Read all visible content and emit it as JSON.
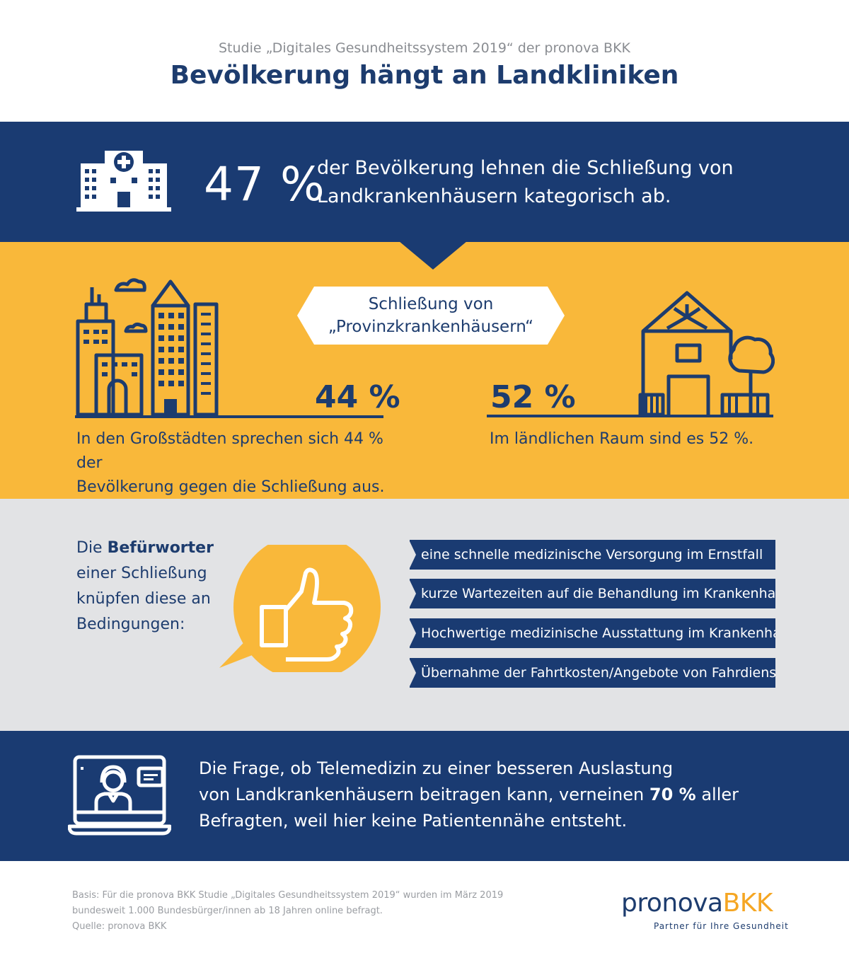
{
  "header": {
    "subtitle": "Studie „Digitales Gesundheitssystem 2019“ der pronova BKK",
    "title": "Bevölkerung hängt an Landkliniken"
  },
  "headline_stat": {
    "percent": "47 %",
    "line1": "der Bevölkerung lehnen die Schließung von",
    "line2": "Landkrankenhäusern kategorisch ab."
  },
  "closure": {
    "label_line1": "Schließung von",
    "label_line2": "„Provinzkrankenhäusern“",
    "city_percent": "44 %",
    "rural_percent": "52 %",
    "city_text_line1": "In den Großstädten sprechen sich 44 % der",
    "city_text_line2": "Bevölkerung gegen die Schließung aus.",
    "rural_text": "Im ländlichen Raum sind es 52 %."
  },
  "proponents": {
    "prefix": "Die ",
    "bold": "Befürworter",
    "line2": "einer Schließung",
    "line3": "knüpfen diese an",
    "line4": "Bedingungen:",
    "conditions": [
      "eine schnelle medizinische Versorgung im Ernstfall",
      "kurze Wartezeiten auf die Behandlung im Krankenhaus",
      "Hochwertige medizinische Ausstattung im Krankenhaus",
      "Übernahme der Fahrtkosten/Angebote von Fahrdiensten"
    ]
  },
  "telemedicine": {
    "line1": "Die Frage, ob Telemedizin zu einer besseren Auslastung",
    "line2_pre": "von Landkrankenhäusern beitragen kann, verneinen ",
    "line2_bold": "70 %",
    "line2_post": " aller",
    "line3": "Befragten, weil hier keine Patientennähe entsteht."
  },
  "footer": {
    "basis_line1": "Basis: Für die pronova BKK Studie „Digitales Gesundheitssystem 2019“ wurden im März 2019",
    "basis_line2": "bundesweit 1.000 Bundesbürger/innen ab 18 Jahren online befragt.",
    "source": "Quelle: pronova BKK",
    "logo_main": "pronova",
    "logo_accent": "BKK",
    "logo_tagline": "Partner für Ihre Gesundheit"
  },
  "colors": {
    "navy": "#1a3b72",
    "yellow": "#f9b83a",
    "grey": "#e2e3e5",
    "logo_orange": "#f5a623"
  }
}
